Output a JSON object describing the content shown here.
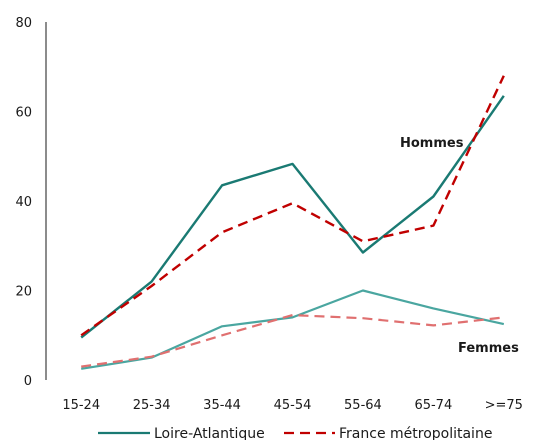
{
  "chart_data": {
    "type": "line",
    "title": "",
    "xlabel": "",
    "ylabel": "",
    "categories": [
      "15-24",
      "25-34",
      "35-44",
      "45-54",
      "55-64",
      "65-74",
      ">=75"
    ],
    "ylim": [
      0,
      80
    ],
    "yticks": [
      "0",
      "20",
      "40",
      "60",
      "80"
    ],
    "grid": false,
    "legend_placement": "bottom",
    "series": [
      {
        "name": "Loire-Atlantique",
        "group": "Hommes",
        "color": "#1a7a73",
        "style": "solid",
        "values": [
          9.5,
          22,
          43.5,
          48.3,
          28.5,
          41,
          63.5
        ]
      },
      {
        "name": "France métropolitaine",
        "group": "Hommes",
        "color": "#c00000",
        "style": "dashed",
        "values": [
          10,
          21,
          33,
          39.5,
          31,
          34.5,
          68
        ]
      },
      {
        "name": "Loire-Atlantique",
        "group": "Femmes",
        "color": "#4aa6a0",
        "style": "solid",
        "values": [
          2.5,
          5,
          12,
          14,
          20,
          16,
          12.5
        ]
      },
      {
        "name": "France métropolitaine",
        "group": "Femmes",
        "color": "#e07070",
        "style": "dashed",
        "values": [
          3,
          5.2,
          10,
          14.5,
          13.8,
          12.2,
          14
        ]
      }
    ],
    "annotations": [
      "Hommes",
      "Femmes"
    ],
    "legend": [
      {
        "label": "Loire-Atlantique",
        "color": "#1a7a73",
        "style": "solid"
      },
      {
        "label": "France métropolitaine",
        "color": "#c00000",
        "style": "dashed"
      }
    ]
  }
}
